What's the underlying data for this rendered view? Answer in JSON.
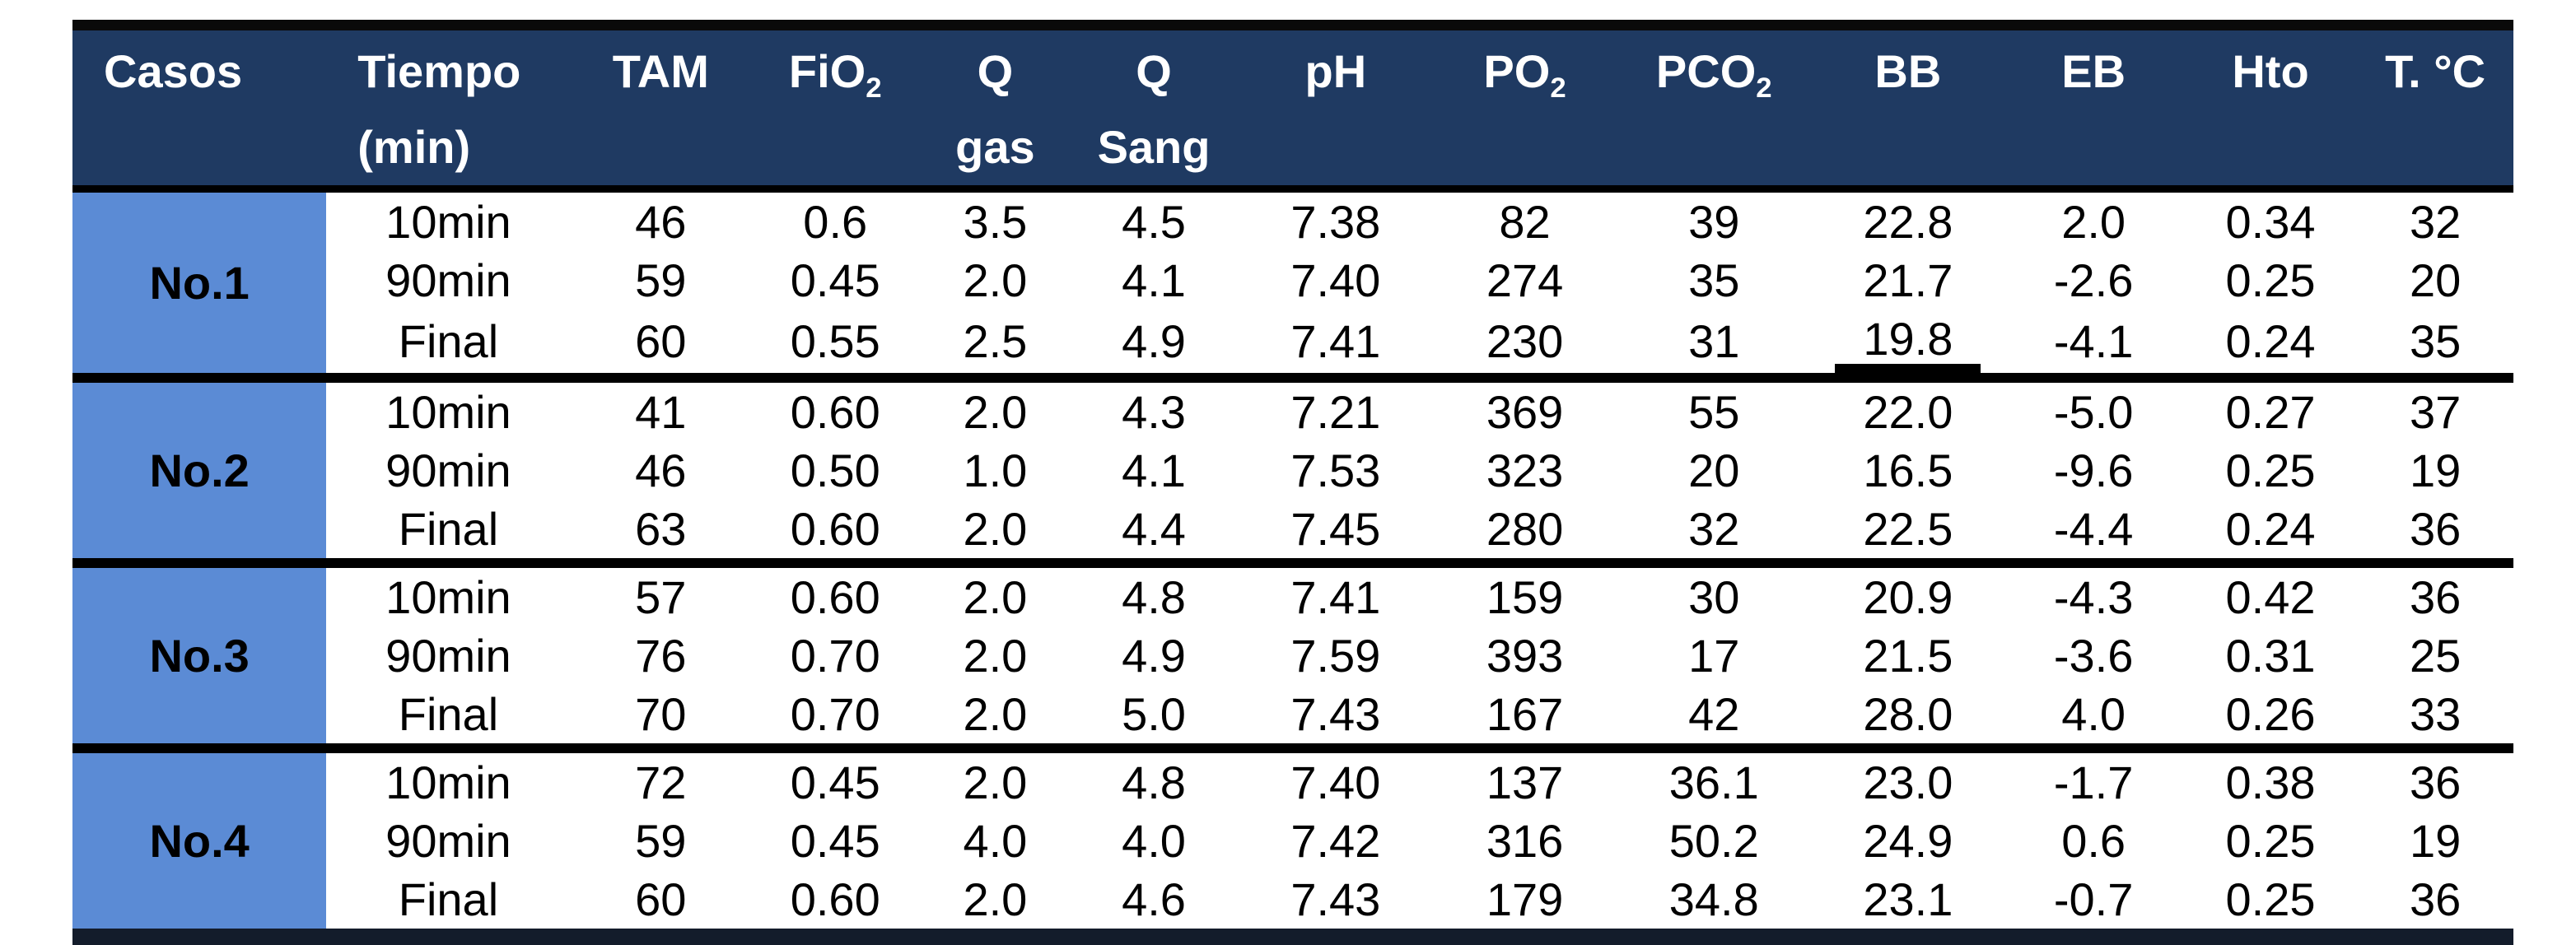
{
  "table": {
    "columns": [
      {
        "id": "casos",
        "line1": "Casos"
      },
      {
        "id": "tiempo",
        "line1": "Tiempo",
        "line2": "(min)"
      },
      {
        "id": "tam",
        "line1": "TAM"
      },
      {
        "id": "fio2",
        "line1": "FiO",
        "sub": "2"
      },
      {
        "id": "qgas",
        "line1": "Q",
        "line2": "gas"
      },
      {
        "id": "qsang",
        "line1": "Q",
        "line2": "Sang"
      },
      {
        "id": "ph",
        "line1": "pH"
      },
      {
        "id": "po2",
        "line1": "PO",
        "sub": "2"
      },
      {
        "id": "pco2",
        "line1": "PCO",
        "sub": "2"
      },
      {
        "id": "bb",
        "line1": "BB"
      },
      {
        "id": "eb",
        "line1": "EB"
      },
      {
        "id": "hto",
        "line1": "Hto"
      },
      {
        "id": "tc",
        "line1": "T. °C"
      }
    ],
    "groups": [
      {
        "label": "No.1",
        "rows": [
          {
            "tiempo": "10min",
            "values": [
              "46",
              "0.6",
              "3.5",
              "4.5",
              "7.38",
              "82",
              "39",
              "22.8",
              "2.0",
              "0.34",
              "32"
            ]
          },
          {
            "tiempo": "90min",
            "values": [
              "59",
              "0.45",
              "2.0",
              "4.1",
              "7.40",
              "274",
              "35",
              "21.7",
              "-2.6",
              "0.25",
              "20"
            ]
          },
          {
            "tiempo": "Final",
            "values": [
              "60",
              "0.55",
              "2.5",
              "4.9",
              "7.41",
              "230",
              "31",
              "19.8",
              "-4.1",
              "0.24",
              "35"
            ]
          }
        ]
      },
      {
        "label": "No.2",
        "rows": [
          {
            "tiempo": "10min",
            "values": [
              "41",
              "0.60",
              "2.0",
              "4.3",
              "7.21",
              "369",
              "55",
              "22.0",
              "-5.0",
              "0.27",
              "37"
            ]
          },
          {
            "tiempo": "90min",
            "values": [
              "46",
              "0.50",
              "1.0",
              "4.1",
              "7.53",
              "323",
              "20",
              "16.5",
              "-9.6",
              "0.25",
              "19"
            ]
          },
          {
            "tiempo": "Final",
            "values": [
              "63",
              "0.60",
              "2.0",
              "4.4",
              "7.45",
              "280",
              "32",
              "22.5",
              "-4.4",
              "0.24",
              "36"
            ]
          }
        ]
      },
      {
        "label": "No.3",
        "rows": [
          {
            "tiempo": "10min",
            "values": [
              "57",
              "0.60",
              "2.0",
              "4.8",
              "7.41",
              "159",
              "30",
              "20.9",
              "-4.3",
              "0.42",
              "36"
            ]
          },
          {
            "tiempo": "90min",
            "values": [
              "76",
              "0.70",
              "2.0",
              "4.9",
              "7.59",
              "393",
              "17",
              "21.5",
              "-3.6",
              "0.31",
              "25"
            ]
          },
          {
            "tiempo": "Final",
            "values": [
              "70",
              "0.70",
              "2.0",
              "5.0",
              "7.43",
              "167",
              "42",
              "28.0",
              "4.0",
              "0.26",
              "33"
            ]
          }
        ]
      },
      {
        "label": "No.4",
        "rows": [
          {
            "tiempo": "10min",
            "values": [
              "72",
              "0.45",
              "2.0",
              "4.8",
              "7.40",
              "137",
              "36.1",
              "23.0",
              "-1.7",
              "0.38",
              "36"
            ]
          },
          {
            "tiempo": "90min",
            "values": [
              "59",
              "0.45",
              "4.0",
              "4.0",
              "7.42",
              "316",
              "50.2",
              "24.9",
              "0.6",
              "0.25",
              "19"
            ]
          },
          {
            "tiempo": "Final",
            "values": [
              "60",
              "0.60",
              "2.0",
              "4.6",
              "7.43",
              "179",
              "34.8",
              "23.1",
              "-0.7",
              "0.25",
              "36"
            ]
          }
        ]
      }
    ],
    "decorations": {
      "underline_cell": {
        "group": 0,
        "row": 2,
        "value_index": 7
      }
    },
    "colors": {
      "header_bg": "#1f3a62",
      "case_bg": "#5b8bd5",
      "header_text": "#ffffff",
      "body_text": "#000000",
      "rule": "#000000"
    },
    "column_widths_pct": [
      10.4,
      10.0,
      7.4,
      6.9,
      6.2,
      6.8,
      8.1,
      7.4,
      8.1,
      7.8,
      7.4,
      7.1,
      6.4
    ]
  }
}
